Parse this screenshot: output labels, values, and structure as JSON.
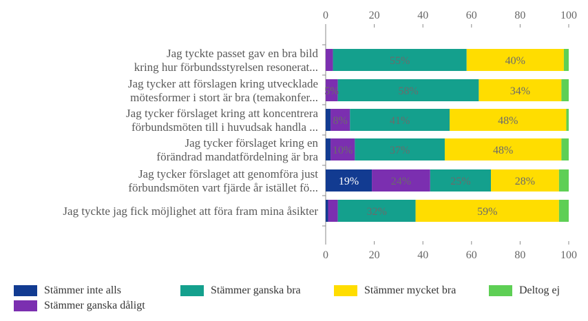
{
  "chart_data": {
    "type": "bar",
    "orientation": "horizontal",
    "stacked": true,
    "title": "",
    "xlabel": "",
    "ylabel": "",
    "xlim": [
      0,
      100
    ],
    "xticks": [
      "0",
      "20",
      "40",
      "60",
      "80",
      "100"
    ],
    "grid": false,
    "legend_position": "bottom",
    "categories": [
      [
        "Jag tyckte passet gav en bra bild",
        "kring hur förbundsstyrelsen resonerat..."
      ],
      [
        "Jag tycker att förslagen kring utvecklade",
        "mötesformer i stort är bra (temakonfer..."
      ],
      [
        "Jag tycker förslaget kring att koncentrera",
        "förbundsmöten till i huvudsak handla ..."
      ],
      [
        "Jag tycker förslaget kring en",
        "förändrad mandatfördelning är bra"
      ],
      [
        "Jag tycker förslaget att genomföra just",
        "förbundsmöten vart fjärde år istället fö..."
      ],
      [
        "Jag tyckte jag fick möjlighet att föra fram mina åsikter"
      ]
    ],
    "series": [
      {
        "name": "Stämmer inte alls",
        "color": "#123b91",
        "values": [
          0,
          0,
          2,
          2,
          19,
          1
        ]
      },
      {
        "name": "Stämmer ganska dåligt",
        "color": "#7b2fb0",
        "values": [
          3,
          5,
          8,
          10,
          24,
          4
        ]
      },
      {
        "name": "Stämmer ganska bra",
        "color": "#14a08d",
        "values": [
          55,
          58,
          41,
          37,
          25,
          32
        ]
      },
      {
        "name": "Stämmer mycket bra",
        "color": "#ffdd00",
        "values": [
          40,
          34,
          48,
          48,
          28,
          59
        ]
      },
      {
        "name": "Deltog ej",
        "color": "#5ecf55",
        "values": [
          2,
          3,
          1,
          3,
          4,
          4
        ]
      }
    ],
    "data_labels": [
      [
        null,
        null,
        "55%",
        "40%",
        null
      ],
      [
        null,
        "5%",
        "58%",
        "34%",
        null
      ],
      [
        null,
        "8%",
        "41%",
        "48%",
        null
      ],
      [
        null,
        "10%",
        "37%",
        "48%",
        null
      ],
      [
        "19%",
        "24%",
        "25%",
        "28%",
        null
      ],
      [
        null,
        null,
        "32%",
        "59%",
        null
      ]
    ]
  }
}
